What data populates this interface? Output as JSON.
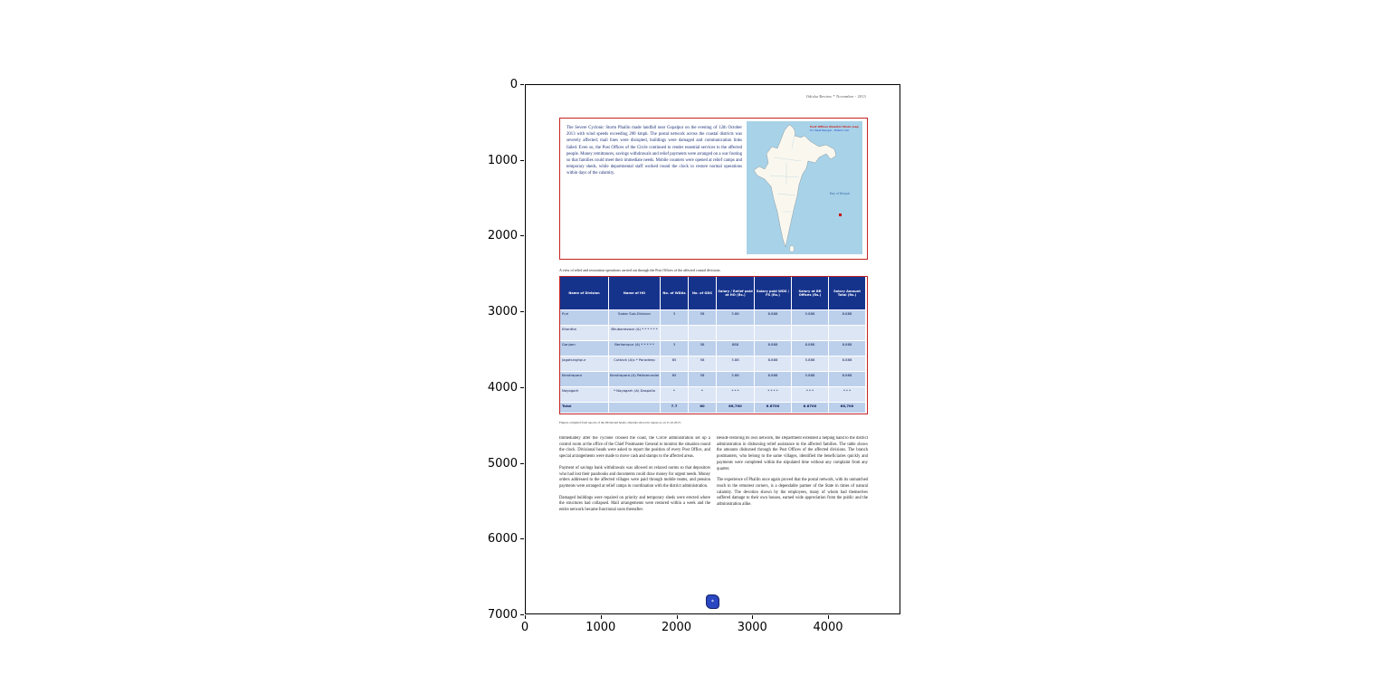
{
  "figure": {
    "x_ticks": [
      "0",
      "1000",
      "2000",
      "3000",
      "4000"
    ],
    "y_ticks": [
      "0",
      "1000",
      "2000",
      "3000",
      "4000",
      "5000",
      "6000",
      "7000"
    ]
  },
  "page": {
    "header_right": "Odisha Review * November - 2013",
    "intro": {
      "text": "The Severe Cyclonic Storm Phailin made landfall near Gopalpur on the evening of 12th October 2013 with wind speeds exceeding 200 kmph. The postal network across the coastal districts was severely affected; mail lines were disrupted, buildings were damaged and communication links failed. Even so, the Post Offices of the Circle continued to render essential services to the affected people. Money remittances, savings withdrawals and relief payments were arranged on a war footing so that families could meet their immediate needs. Mobile counters were opened at relief camps and temporary sheds, while departmental staff worked round the clock to restore normal operations within days of the calamity."
    },
    "map": {
      "note_line1": "Post Offices Disaster Mode map",
      "note_line2": "for West Bengal - Phailin cell",
      "sea_label": "Bay of Bengal"
    },
    "table_caption": "A view of relief and restoration operations carried out through the Post Offices of the affected coastal divisions.",
    "table": {
      "headers": [
        "Name of Division",
        "Name of HO",
        "No. of WDAs",
        "No. of GDS",
        "Salary / Relief paid at HO (Rs.)",
        "Salary paid WDS / FS (Rs.)",
        "Salary at BR Offices (Rs.)",
        "Salary Amount Total (Rs.)"
      ],
      "rows": [
        [
          "Puri",
          "Sadar Sub-Division",
          "3",
          "58",
          "3.88",
          "8.888",
          "5.888",
          "8.888"
        ],
        [
          "Khordha",
          "Bhubaneswar (A) * * * * * *",
          "",
          "",
          "",
          "",
          "",
          ""
        ],
        [
          "Ganjam",
          "Berhampur (A) * * * * *",
          "3",
          "58",
          "888",
          "8.888",
          "8.888",
          "8.888"
        ],
        [
          "Jagatsinghpur",
          "Cuttack (A)s * Paradeep",
          "85",
          "58",
          "3.88",
          "8.888",
          "5.888",
          "8.888"
        ],
        [
          "Kendrapara",
          "Kendrapara (A) Pattamundai",
          "85",
          "58",
          "3.88",
          "8.888",
          "5.888",
          "8.888"
        ],
        [
          "Nayagarh",
          "* Nayagarh (A) Daspalla",
          "*",
          "*",
          "* * *",
          "* * * *",
          "* * *",
          "* * *"
        ],
        [
          "Total",
          "",
          "7.7",
          "80",
          "66,700",
          "6.6700",
          "8.8700",
          "66,700"
        ]
      ],
      "footnote": "Figures compiled from reports of the Divisional heads; amounts shown in rupees as on 31.10.2013."
    },
    "body": {
      "left": [
        "Immediately after the cyclone crossed the coast, the Circle administration set up a control room at the office of the Chief Postmaster General to monitor the situation round the clock. Divisional heads were asked to report the position of every Post Office, and special arrangements were made to move cash and stamps to the affected areas.",
        "Payment of savings bank withdrawals was allowed on relaxed norms so that depositors who had lost their passbooks and documents could draw money for urgent needs. Money orders addressed to the affected villages were paid through mobile teams, and pension payments were arranged at relief camps in coordination with the district administration.",
        "Damaged buildings were repaired on priority and temporary sheds were erected where the structures had collapsed. Mail arrangements were restored within a week and the entire network became functional soon thereafter."
      ],
      "right": [
        "Beside restoring its own network, the Department extended a helping hand to the district administration in disbursing relief assistance to the affected families. The table shows the amounts disbursed through the Post Offices of the affected divisions. The branch postmasters, who belong to the same villages, identified the beneficiaries quickly and payments were completed within the stipulated time without any complaint from any quarter.",
        "The experience of Phailin once again proved that the postal network, with its unmatched reach in the remotest corners, is a dependable partner of the State in times of natural calamity. The devotion shown by the employees, many of whom had themselves suffered damage to their own houses, earned wide appreciation from the public and the administration alike."
      ]
    },
    "stamp_text": "*"
  }
}
